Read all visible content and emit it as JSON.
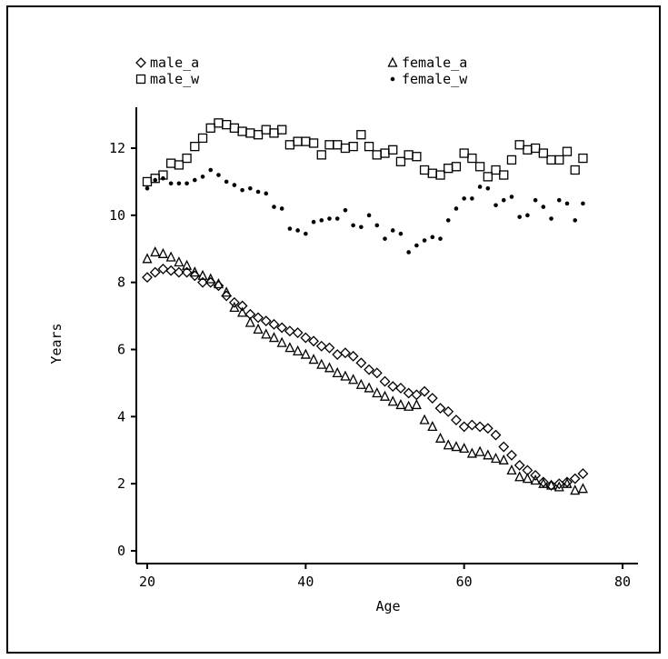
{
  "chart_data": {
    "type": "scatter",
    "title": "",
    "xlabel": "Age",
    "ylabel": "Years",
    "xlim": [
      18,
      82
    ],
    "ylim": [
      -0.3,
      13.2
    ],
    "x_ticks": [
      20,
      40,
      60,
      80
    ],
    "y_ticks": [
      0,
      2,
      4,
      6,
      8,
      10,
      12
    ],
    "grid": false,
    "legend_position": "top",
    "series": [
      {
        "name": "male_a",
        "marker": "diamond",
        "x": [
          20,
          21,
          22,
          23,
          24,
          25,
          26,
          27,
          28,
          29,
          30,
          31,
          32,
          33,
          34,
          35,
          36,
          37,
          38,
          39,
          40,
          41,
          42,
          43,
          44,
          45,
          46,
          47,
          48,
          49,
          50,
          51,
          52,
          53,
          54,
          55,
          56,
          57,
          58,
          59,
          60,
          61,
          62,
          63,
          64,
          65,
          66,
          67,
          68,
          69,
          70,
          71,
          72,
          73,
          74,
          75
        ],
        "y": [
          8.15,
          8.3,
          8.4,
          8.35,
          8.3,
          8.3,
          8.2,
          8.0,
          8.0,
          7.9,
          7.6,
          7.4,
          7.3,
          7.05,
          6.95,
          6.85,
          6.75,
          6.65,
          6.55,
          6.5,
          6.35,
          6.25,
          6.1,
          6.05,
          5.85,
          5.9,
          5.8,
          5.6,
          5.4,
          5.3,
          5.05,
          4.9,
          4.85,
          4.7,
          4.65,
          4.75,
          4.55,
          4.25,
          4.15,
          3.9,
          3.7,
          3.75,
          3.7,
          3.65,
          3.45,
          3.1,
          2.85,
          2.55,
          2.4,
          2.25,
          2.05,
          1.95,
          2.0,
          2.05,
          2.15,
          2.3
        ]
      },
      {
        "name": "female_a",
        "marker": "triangle",
        "x": [
          20,
          21,
          22,
          23,
          24,
          25,
          26,
          27,
          28,
          29,
          30,
          31,
          32,
          33,
          34,
          35,
          36,
          37,
          38,
          39,
          40,
          41,
          42,
          43,
          44,
          45,
          46,
          47,
          48,
          49,
          50,
          51,
          52,
          53,
          54,
          55,
          56,
          57,
          58,
          59,
          60,
          61,
          62,
          63,
          64,
          65,
          66,
          67,
          68,
          69,
          70,
          71,
          72,
          73,
          74,
          75
        ],
        "y": [
          8.7,
          8.9,
          8.85,
          8.75,
          8.6,
          8.5,
          8.3,
          8.2,
          8.1,
          7.95,
          7.7,
          7.25,
          7.1,
          6.8,
          6.6,
          6.45,
          6.35,
          6.2,
          6.05,
          5.95,
          5.85,
          5.7,
          5.55,
          5.45,
          5.3,
          5.2,
          5.1,
          4.95,
          4.85,
          4.7,
          4.6,
          4.45,
          4.35,
          4.3,
          4.35,
          3.9,
          3.7,
          3.35,
          3.15,
          3.1,
          3.05,
          2.9,
          2.95,
          2.85,
          2.75,
          2.7,
          2.4,
          2.2,
          2.15,
          2.1,
          2.0,
          1.95,
          1.9,
          2.0,
          1.8,
          1.85
        ]
      },
      {
        "name": "male_w",
        "marker": "square",
        "x": [
          20,
          21,
          22,
          23,
          24,
          25,
          26,
          27,
          28,
          29,
          30,
          31,
          32,
          33,
          34,
          35,
          36,
          37,
          38,
          39,
          40,
          41,
          42,
          43,
          44,
          45,
          46,
          47,
          48,
          49,
          50,
          51,
          52,
          53,
          54,
          55,
          56,
          57,
          58,
          59,
          60,
          61,
          62,
          63,
          64,
          65,
          66,
          67,
          68,
          69,
          70,
          71,
          72,
          73,
          74,
          75
        ],
        "y": [
          11.0,
          11.1,
          11.2,
          11.55,
          11.5,
          11.7,
          12.05,
          12.3,
          12.6,
          12.75,
          12.7,
          12.6,
          12.5,
          12.45,
          12.4,
          12.55,
          12.45,
          12.55,
          12.1,
          12.2,
          12.2,
          12.15,
          11.8,
          12.1,
          12.1,
          12.0,
          12.05,
          12.4,
          12.05,
          11.8,
          11.85,
          11.95,
          11.6,
          11.8,
          11.75,
          11.35,
          11.25,
          11.2,
          11.4,
          11.45,
          11.85,
          11.7,
          11.45,
          11.15,
          11.35,
          11.2,
          11.65,
          12.1,
          11.95,
          12.0,
          11.85,
          11.65,
          11.65,
          11.9,
          11.35,
          11.7
        ]
      },
      {
        "name": "female_w",
        "marker": "dot",
        "x": [
          20,
          21,
          22,
          23,
          24,
          25,
          26,
          27,
          28,
          29,
          30,
          31,
          32,
          33,
          34,
          35,
          36,
          37,
          38,
          39,
          40,
          41,
          42,
          43,
          44,
          45,
          46,
          47,
          48,
          49,
          50,
          51,
          52,
          53,
          54,
          55,
          56,
          57,
          58,
          59,
          60,
          61,
          62,
          63,
          64,
          65,
          66,
          67,
          68,
          69,
          70,
          71,
          72,
          73,
          74,
          75
        ],
        "y": [
          10.8,
          11.05,
          11.1,
          10.95,
          10.95,
          10.95,
          11.05,
          11.15,
          11.35,
          11.2,
          11.0,
          10.9,
          10.75,
          10.8,
          10.7,
          10.65,
          10.25,
          10.2,
          9.6,
          9.55,
          9.45,
          9.8,
          9.85,
          9.9,
          9.9,
          10.15,
          9.7,
          9.65,
          10.0,
          9.7,
          9.3,
          9.55,
          9.45,
          8.9,
          9.1,
          9.25,
          9.35,
          9.3,
          9.85,
          10.2,
          10.5,
          10.5,
          10.85,
          10.8,
          10.3,
          10.45,
          10.55,
          9.95,
          10.0,
          10.45,
          10.25,
          9.9,
          10.45,
          10.35,
          9.85,
          10.35
        ]
      }
    ]
  }
}
